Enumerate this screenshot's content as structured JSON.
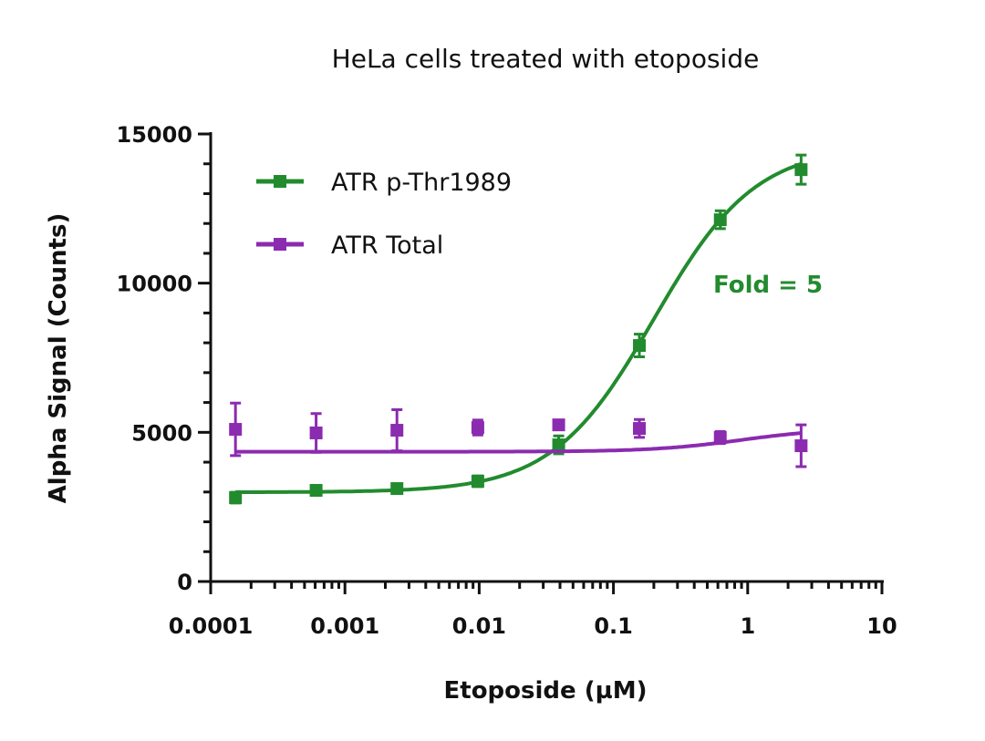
{
  "chart_data": {
    "type": "scatter",
    "title": "HeLa cells treated with etoposide",
    "xlabel": "Etoposide (µM)",
    "ylabel": "Alpha Signal (Counts)",
    "xscale": "log",
    "xlim": [
      0.0001,
      10
    ],
    "ylim": [
      0,
      15000
    ],
    "xticks": [
      "0.0001",
      "0.001",
      "0.01",
      "0.1",
      "1",
      "10"
    ],
    "yticks": [
      "0",
      "5000",
      "10000",
      "15000"
    ],
    "grid": false,
    "legend_position": "top-left",
    "x": [
      0.000153,
      0.00061,
      0.00244,
      0.00977,
      0.0391,
      0.156,
      0.625,
      2.5
    ],
    "series": [
      {
        "name": "ATR p-Thr1989",
        "color": "#228B2E",
        "marker": "square",
        "values": [
          2810,
          3055,
          3115,
          3360,
          4580,
          7910,
          12125,
          13805
        ],
        "errors": [
          180,
          120,
          120,
          180,
          300,
          380,
          300,
          490
        ],
        "fit": "sigmoidal"
      },
      {
        "name": "ATR Total",
        "color": "#8B2BB0",
        "marker": "square",
        "values": [
          5100,
          4980,
          5070,
          5160,
          5250,
          5130,
          4825,
          4550
        ],
        "errors": [
          880,
          650,
          690,
          250,
          120,
          300,
          200,
          700
        ],
        "fit": "sigmoidal"
      }
    ],
    "annotations": [
      {
        "text": "Fold = 5",
        "color": "#228B2E"
      }
    ]
  }
}
